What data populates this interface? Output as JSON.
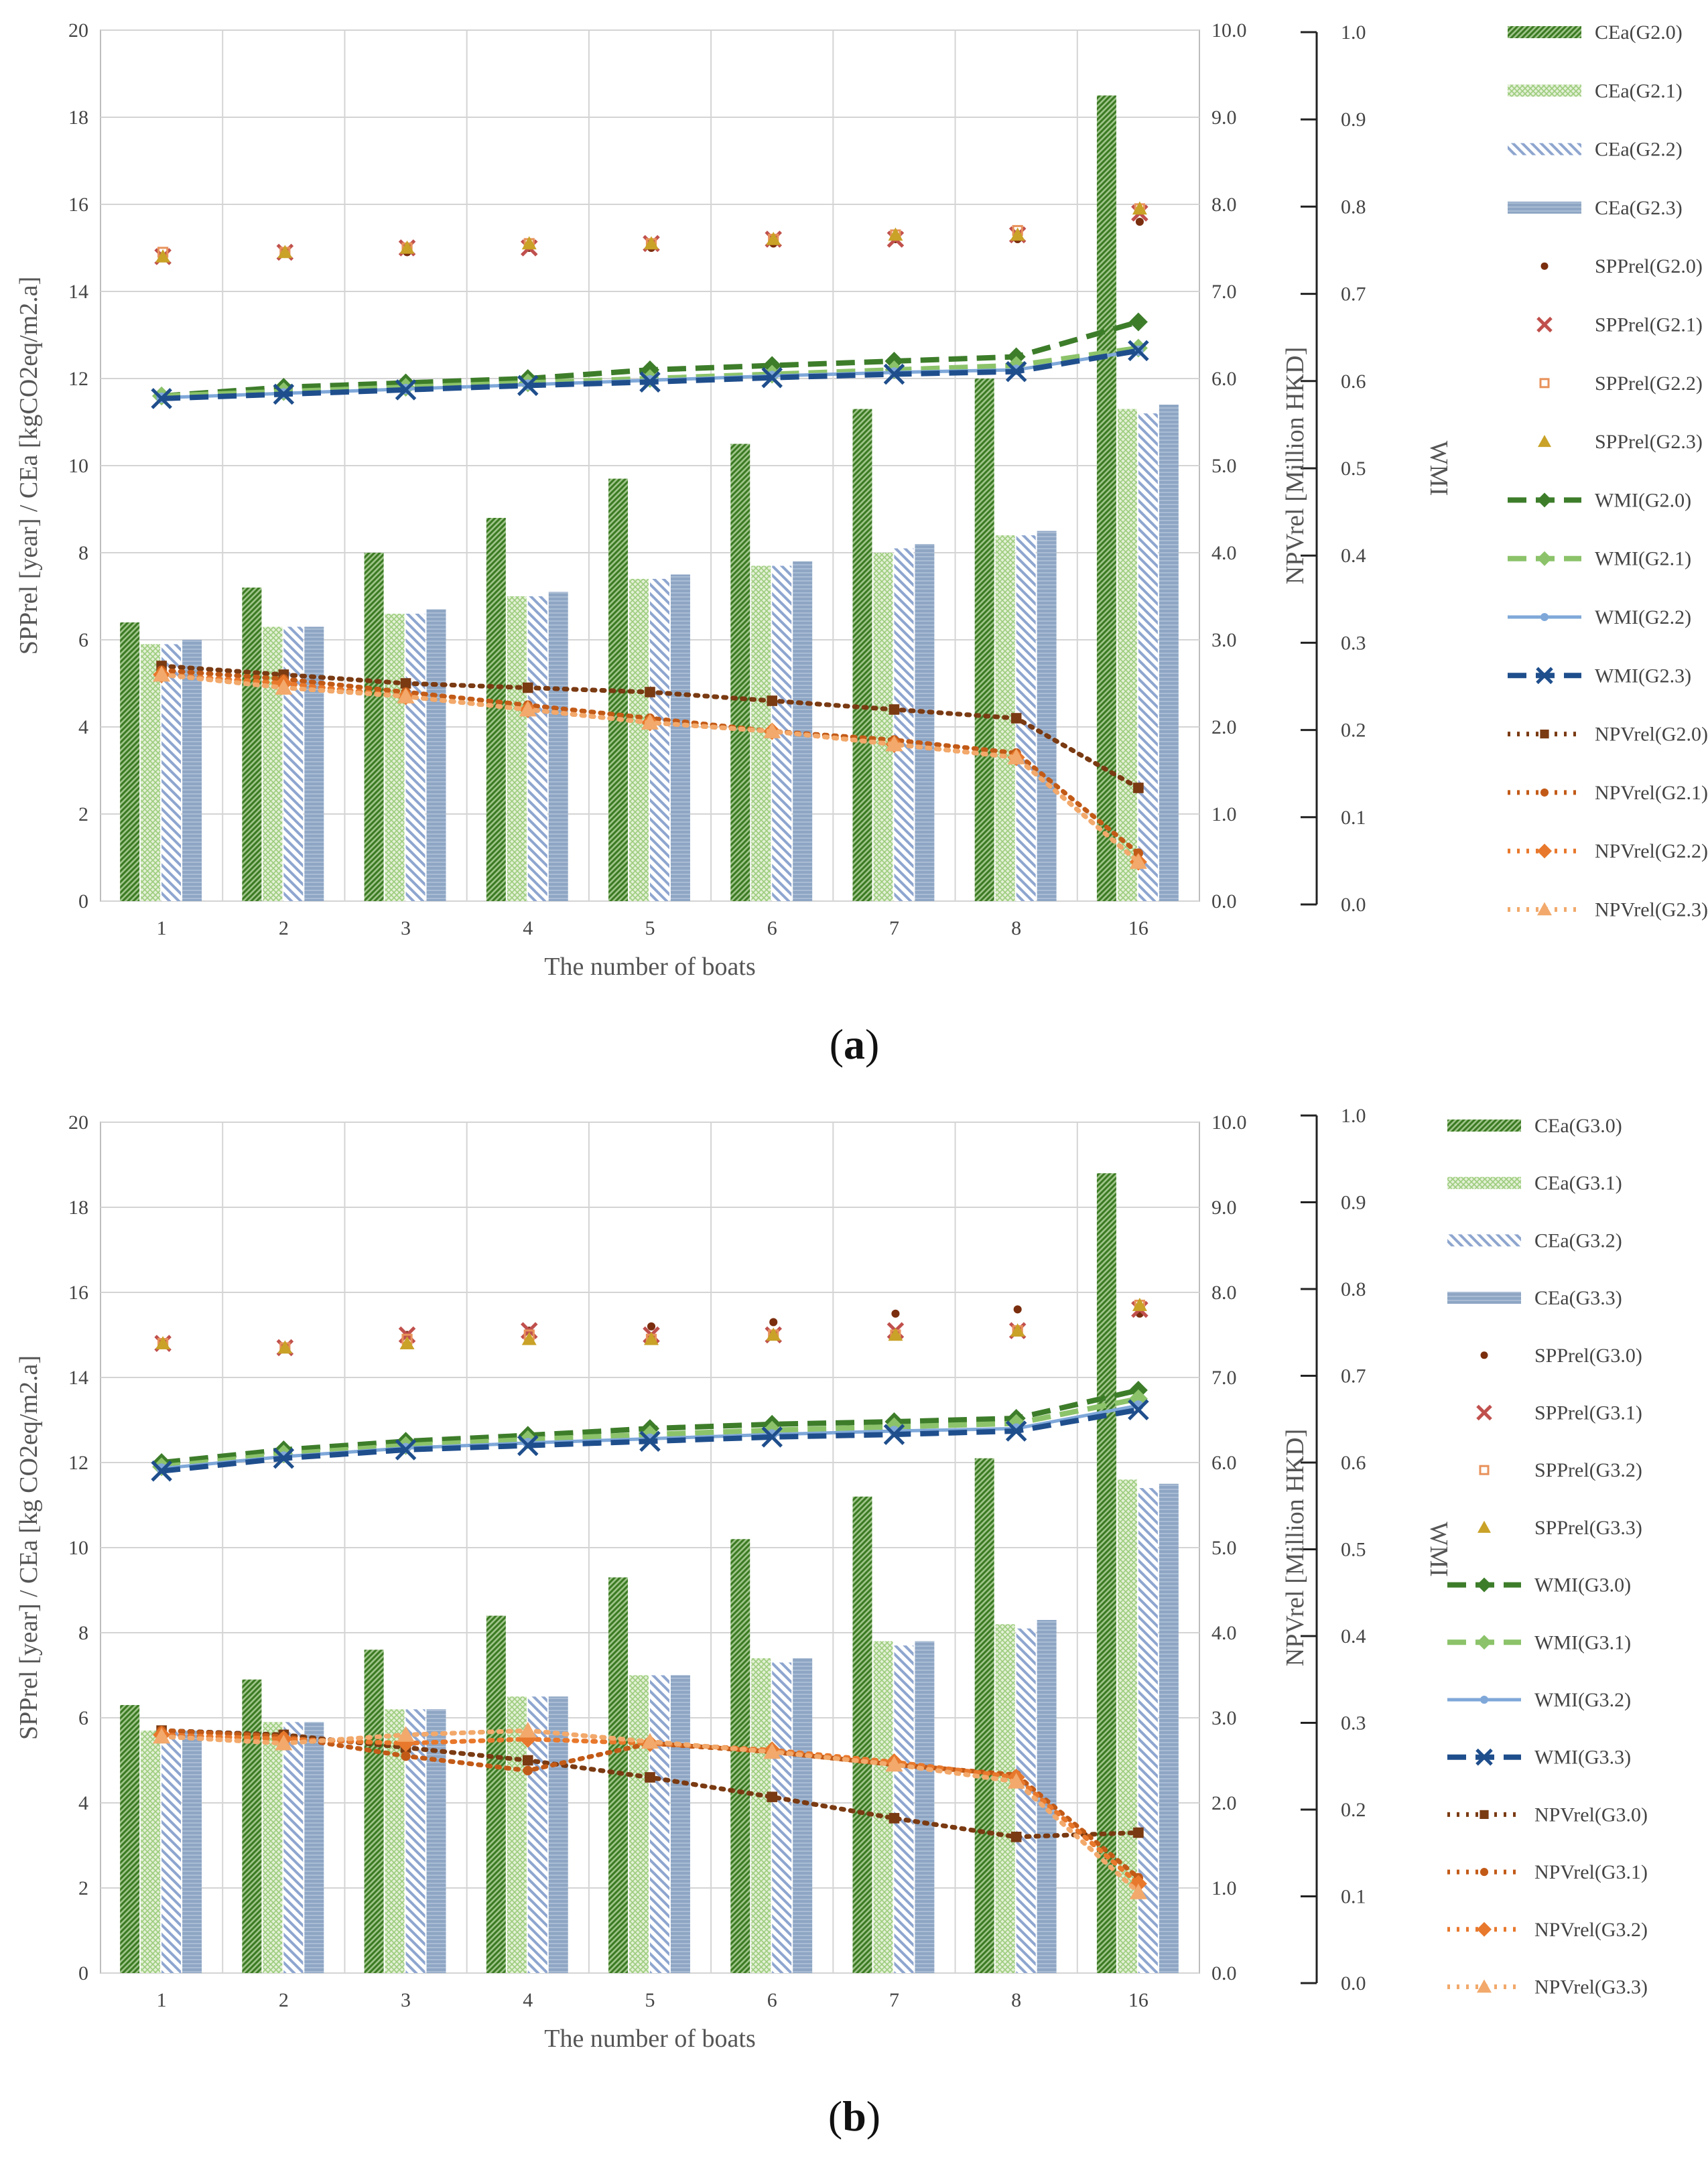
{
  "chart_data": [
    {
      "id": "a",
      "type": "bar",
      "panel_label": "a",
      "xlabel": "The number of boats",
      "ylabel_left": "SPPrel [year] / CEa [kgCO2eq/m2.a]",
      "ylabel_right": "NPVrel [Million HKD]",
      "ylabel_far": "WMI",
      "categories": [
        "1",
        "2",
        "3",
        "4",
        "5",
        "6",
        "7",
        "8",
        "16"
      ],
      "ylim_left": [
        0,
        20
      ],
      "ylim_right": [
        0,
        10
      ],
      "ylim_far": [
        0,
        1
      ],
      "left_ticks": [
        "0",
        "2",
        "4",
        "6",
        "8",
        "10",
        "12",
        "14",
        "16",
        "18",
        "20"
      ],
      "right_ticks": [
        "0.0",
        "1.0",
        "2.0",
        "3.0",
        "4.0",
        "5.0",
        "6.0",
        "7.0",
        "8.0",
        "9.0",
        "10.0"
      ],
      "far_ticks": [
        "0.0",
        "0.1",
        "0.2",
        "0.3",
        "0.4",
        "0.5",
        "0.6",
        "0.7",
        "0.8",
        "0.9",
        "1.0"
      ],
      "bars": [
        {
          "name": "CEa(G2.0)",
          "style": "darkgreen",
          "values": [
            6.4,
            7.2,
            8.0,
            8.8,
            9.7,
            10.5,
            11.3,
            12.0,
            18.5
          ]
        },
        {
          "name": "CEa(G2.1)",
          "style": "lightgreen",
          "values": [
            5.9,
            6.3,
            6.6,
            7.0,
            7.4,
            7.7,
            8.0,
            8.4,
            11.3
          ]
        },
        {
          "name": "CEa(G2.2)",
          "style": "bluehatch",
          "values": [
            5.9,
            6.3,
            6.6,
            7.0,
            7.4,
            7.7,
            8.1,
            8.4,
            11.2
          ]
        },
        {
          "name": "CEa(G2.3)",
          "style": "steel",
          "values": [
            6.0,
            6.3,
            6.7,
            7.1,
            7.5,
            7.8,
            8.2,
            8.5,
            11.4
          ]
        }
      ],
      "spp": [
        {
          "name": "SPPrel(G2.0)",
          "marker": "dot",
          "values": [
            14.8,
            14.9,
            14.9,
            15.0,
            15.0,
            15.1,
            15.2,
            15.2,
            15.6
          ]
        },
        {
          "name": "SPPrel(G2.1)",
          "marker": "x",
          "values": [
            14.8,
            14.9,
            15.0,
            15.0,
            15.1,
            15.2,
            15.2,
            15.3,
            15.8
          ]
        },
        {
          "name": "SPPrel(G2.2)",
          "marker": "square",
          "values": [
            14.9,
            14.9,
            15.0,
            15.1,
            15.1,
            15.2,
            15.3,
            15.4,
            15.9
          ]
        },
        {
          "name": "SPPrel(G2.3)",
          "marker": "triangle",
          "values": [
            14.8,
            14.9,
            15.0,
            15.1,
            15.1,
            15.2,
            15.3,
            15.3,
            15.9
          ]
        }
      ],
      "wmi": [
        {
          "name": "WMI(G2.0)",
          "style": "wmi0",
          "values": [
            0.58,
            0.59,
            0.595,
            0.6,
            0.61,
            0.615,
            0.62,
            0.625,
            0.665
          ]
        },
        {
          "name": "WMI(G2.1)",
          "style": "wmi1",
          "values": [
            0.58,
            0.585,
            0.59,
            0.595,
            0.6,
            0.605,
            0.61,
            0.615,
            0.635
          ]
        },
        {
          "name": "WMI(G2.2)",
          "style": "wmi2",
          "values": [
            0.578,
            0.583,
            0.588,
            0.593,
            0.598,
            0.603,
            0.607,
            0.61,
            0.632
          ]
        },
        {
          "name": "WMI(G2.3)",
          "style": "wmi3",
          "values": [
            0.577,
            0.582,
            0.587,
            0.592,
            0.596,
            0.601,
            0.605,
            0.608,
            0.632
          ]
        }
      ],
      "npv": [
        {
          "name": "NPVrel(G2.0)",
          "style": "npv0",
          "values": [
            2.7,
            2.6,
            2.5,
            2.45,
            2.4,
            2.3,
            2.2,
            2.1,
            1.3
          ]
        },
        {
          "name": "NPVrel(G2.1)",
          "style": "npv1",
          "values": [
            2.65,
            2.55,
            2.4,
            2.25,
            2.1,
            1.95,
            1.85,
            1.7,
            0.55
          ]
        },
        {
          "name": "NPVrel(G2.2)",
          "style": "npv2",
          "values": [
            2.6,
            2.5,
            2.35,
            2.2,
            2.05,
            1.95,
            1.8,
            1.65,
            0.45
          ]
        },
        {
          "name": "NPVrel(G2.3)",
          "style": "npv3",
          "values": [
            2.6,
            2.45,
            2.35,
            2.2,
            2.05,
            1.95,
            1.8,
            1.65,
            0.45
          ]
        }
      ]
    },
    {
      "id": "b",
      "type": "bar",
      "panel_label": "b",
      "xlabel": "The number of boats",
      "ylabel_left": "SPPrel [year] / CEa [kg CO2eq/m2.a]",
      "ylabel_right": "NPVrel [Million HKD]",
      "ylabel_far": "WMI",
      "categories": [
        "1",
        "2",
        "3",
        "4",
        "5",
        "6",
        "7",
        "8",
        "16"
      ],
      "ylim_left": [
        0,
        20
      ],
      "ylim_right": [
        0,
        10
      ],
      "ylim_far": [
        0,
        1
      ],
      "left_ticks": [
        "0",
        "2",
        "4",
        "6",
        "8",
        "10",
        "12",
        "14",
        "16",
        "18",
        "20"
      ],
      "right_ticks": [
        "0.0",
        "1.0",
        "2.0",
        "3.0",
        "4.0",
        "5.0",
        "6.0",
        "7.0",
        "8.0",
        "9.0",
        "10.0"
      ],
      "far_ticks": [
        "0.0",
        "0.1",
        "0.2",
        "0.3",
        "0.4",
        "0.5",
        "0.6",
        "0.7",
        "0.8",
        "0.9",
        "1.0"
      ],
      "bars": [
        {
          "name": "CEa(G3.0)",
          "style": "darkgreen",
          "values": [
            6.3,
            6.9,
            7.6,
            8.4,
            9.3,
            10.2,
            11.2,
            12.1,
            18.8
          ]
        },
        {
          "name": "CEa(G3.1)",
          "style": "lightgreen",
          "values": [
            5.7,
            5.9,
            6.2,
            6.5,
            7.0,
            7.4,
            7.8,
            8.2,
            11.6
          ]
        },
        {
          "name": "CEa(G3.2)",
          "style": "bluehatch",
          "values": [
            5.7,
            5.9,
            6.2,
            6.5,
            7.0,
            7.3,
            7.7,
            8.1,
            11.4
          ]
        },
        {
          "name": "CEa(G3.3)",
          "style": "steel",
          "values": [
            5.7,
            5.9,
            6.2,
            6.5,
            7.0,
            7.4,
            7.8,
            8.3,
            11.5
          ]
        }
      ],
      "spp": [
        {
          "name": "SPPrel(G3.0)",
          "marker": "dot",
          "values": [
            14.8,
            14.7,
            15.0,
            15.1,
            15.2,
            15.3,
            15.5,
            15.6,
            15.5
          ]
        },
        {
          "name": "SPPrel(G3.1)",
          "marker": "x",
          "values": [
            14.8,
            14.7,
            15.0,
            15.1,
            15.0,
            15.0,
            15.1,
            15.1,
            15.6
          ]
        },
        {
          "name": "SPPrel(G3.2)",
          "marker": "square",
          "values": [
            14.8,
            14.7,
            14.9,
            15.0,
            14.9,
            15.0,
            15.0,
            15.1,
            15.7
          ]
        },
        {
          "name": "SPPrel(G3.3)",
          "marker": "triangle",
          "values": [
            14.8,
            14.7,
            14.8,
            14.9,
            14.9,
            15.0,
            15.0,
            15.1,
            15.7
          ]
        }
      ],
      "wmi": [
        {
          "name": "WMI(G3.0)",
          "style": "wmi0",
          "values": [
            0.6,
            0.615,
            0.625,
            0.632,
            0.64,
            0.645,
            0.648,
            0.652,
            0.685
          ]
        },
        {
          "name": "WMI(G3.1)",
          "style": "wmi1",
          "values": [
            0.595,
            0.61,
            0.62,
            0.627,
            0.633,
            0.638,
            0.642,
            0.646,
            0.675
          ]
        },
        {
          "name": "WMI(G3.2)",
          "style": "wmi2",
          "values": [
            0.593,
            0.607,
            0.617,
            0.623,
            0.628,
            0.633,
            0.637,
            0.64,
            0.667
          ]
        },
        {
          "name": "WMI(G3.3)",
          "style": "wmi3",
          "values": [
            0.59,
            0.605,
            0.615,
            0.62,
            0.625,
            0.63,
            0.633,
            0.637,
            0.662
          ]
        }
      ],
      "npv": [
        {
          "name": "NPVrel(G3.0)",
          "style": "npv0",
          "values": [
            2.85,
            2.8,
            2.65,
            2.5,
            2.3,
            2.07,
            1.82,
            1.6,
            1.65
          ]
        },
        {
          "name": "NPVrel(G3.1)",
          "style": "npv1",
          "values": [
            2.85,
            2.78,
            2.55,
            2.38,
            2.7,
            2.6,
            2.45,
            2.33,
            1.12
          ]
        },
        {
          "name": "NPVrel(G3.2)",
          "style": "npv2",
          "values": [
            2.8,
            2.75,
            2.7,
            2.75,
            2.7,
            2.62,
            2.48,
            2.3,
            1.05
          ]
        },
        {
          "name": "NPVrel(G3.3)",
          "style": "npv3",
          "values": [
            2.78,
            2.7,
            2.8,
            2.85,
            2.72,
            2.6,
            2.45,
            2.25,
            0.95
          ]
        }
      ]
    }
  ]
}
